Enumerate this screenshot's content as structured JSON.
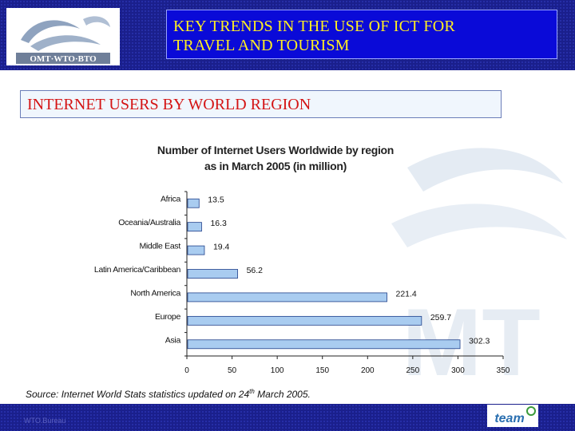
{
  "header": {
    "title_line1": "KEY TRENDS IN THE USE OF ICT FOR",
    "title_line2": "TRAVEL AND TOURISM",
    "logo_text": "OMT·WTO·BTO"
  },
  "subtitle": "INTERNET USERS BY WORLD REGION",
  "chart_data": {
    "type": "bar",
    "orientation": "horizontal",
    "title_line1": "Number of Internet Users Worldwide by region",
    "title_line2": "as in March 2005 (in million)",
    "categories": [
      "Africa",
      "Oceania/Australia",
      "Middle East",
      "Latin America/Caribbean",
      "North America",
      "Europe",
      "Asia"
    ],
    "values": [
      13.5,
      16.3,
      19.4,
      56.2,
      221.4,
      259.7,
      302.3
    ],
    "value_labels": [
      "13.5",
      "16.3",
      "19.4",
      "56.2",
      "221.4",
      "259.7",
      "302.3"
    ],
    "x_ticks": [
      "0",
      "50",
      "100",
      "150",
      "200",
      "250",
      "300",
      "350"
    ],
    "xlim": [
      0,
      350
    ],
    "grid": false,
    "bar_color": "#a9ccf0"
  },
  "source": {
    "text_before": "Source: Internet World Stats statistics updated on 24",
    "sup": "th",
    "text_after": " March 2005."
  },
  "footer": {
    "left_text": "WTO.Bureau",
    "logo_text": "team"
  },
  "colors": {
    "header_bg": "#1a1f8c",
    "title_box_bg": "#0a0ad8",
    "title_text": "#ffee22",
    "subtitle_text": "#d41414"
  }
}
